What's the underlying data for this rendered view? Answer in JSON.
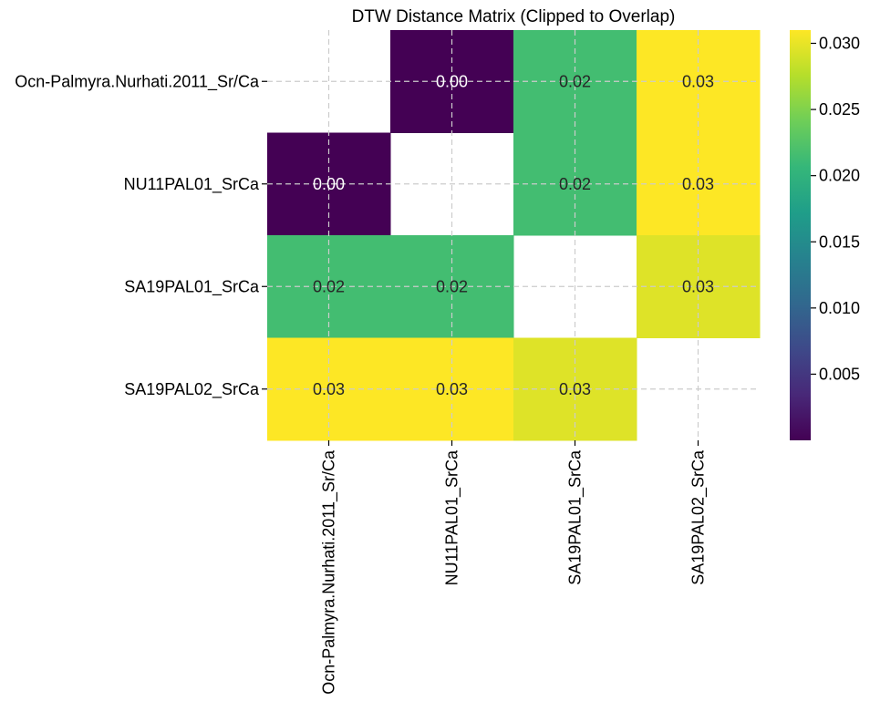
{
  "chart_data": {
    "type": "heatmap",
    "title": "DTW Distance Matrix (Clipped to Overlap)",
    "xlabel": "",
    "ylabel": "",
    "rows": [
      "Ocn-Palmyra.Nurhati.2011_Sr/Ca",
      "NU11PAL01_SrCa",
      "SA19PAL01_SrCa",
      "SA19PAL02_SrCa"
    ],
    "columns": [
      "Ocn-Palmyra.Nurhati.2011_Sr/Ca",
      "NU11PAL01_SrCa",
      "SA19PAL01_SrCa",
      "SA19PAL02_SrCa"
    ],
    "values": [
      [
        null,
        0.0,
        0.0215,
        0.031
      ],
      [
        0.0,
        null,
        0.0215,
        0.031
      ],
      [
        0.0215,
        0.0215,
        null,
        0.0295
      ],
      [
        0.031,
        0.031,
        0.0295,
        null
      ]
    ],
    "annotations": [
      [
        "",
        "0.00",
        "0.02",
        "0.03"
      ],
      [
        "0.00",
        "",
        "0.02",
        "0.03"
      ],
      [
        "0.02",
        "0.02",
        "",
        "0.03"
      ],
      [
        "0.03",
        "0.03",
        "0.03",
        ""
      ]
    ],
    "colormap": "viridis",
    "colorbar": {
      "min": 0.0,
      "max": 0.031,
      "ticks": [
        0.005,
        0.01,
        0.015,
        0.02,
        0.025,
        0.03
      ],
      "tick_labels": [
        "0.005",
        "0.010",
        "0.015",
        "0.020",
        "0.025",
        "0.030"
      ]
    },
    "grid": true,
    "annotation_colors": {
      "dark_cells": "#ffffff",
      "light_cells": "#262626"
    }
  }
}
